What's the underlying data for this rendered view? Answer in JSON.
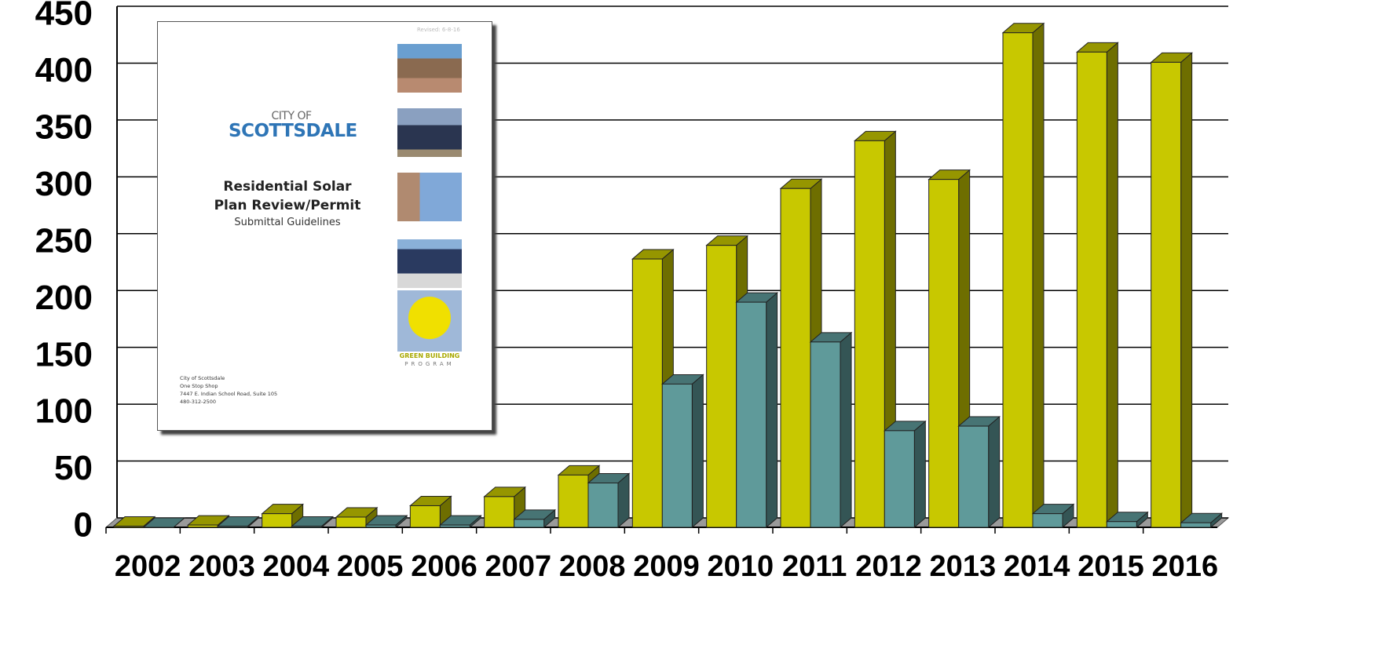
{
  "chart_data": {
    "type": "bar3d",
    "categories": [
      "2002",
      "2003",
      "2004",
      "2005",
      "2006",
      "2007",
      "2008",
      "2009",
      "2010",
      "2011",
      "2012",
      "2013",
      "2014",
      "2015",
      "2016"
    ],
    "series": [
      {
        "color": "#c8c800",
        "values": [
          1,
          2,
          12,
          9,
          19,
          27,
          46,
          236,
          248,
          298,
          340,
          306,
          435,
          418,
          409
        ]
      },
      {
        "color": "#5f9a9a",
        "values": [
          0,
          1,
          1,
          2,
          2,
          7,
          39,
          126,
          198,
          163,
          85,
          89,
          12,
          5,
          4
        ]
      }
    ],
    "ylim": [
      0,
      450
    ],
    "yticks": [
      0,
      50,
      100,
      150,
      200,
      250,
      300,
      350,
      400,
      450
    ],
    "grid": true
  },
  "inset": {
    "revised": "Revised: 6-8-16",
    "city_of": "CITY OF",
    "city": "SCOTTSDALE",
    "title_line1": "Residential Solar",
    "title_line2": "Plan Review/Permit",
    "subtitle": "Submittal Guidelines",
    "program_line1": "GREEN BUILDING",
    "program_line2": "PROGRAM",
    "address": [
      "City of Scottsdale",
      "One Stop Shop",
      "7447 E. Indian School Road, Suite 105",
      "480-312-2500"
    ]
  }
}
